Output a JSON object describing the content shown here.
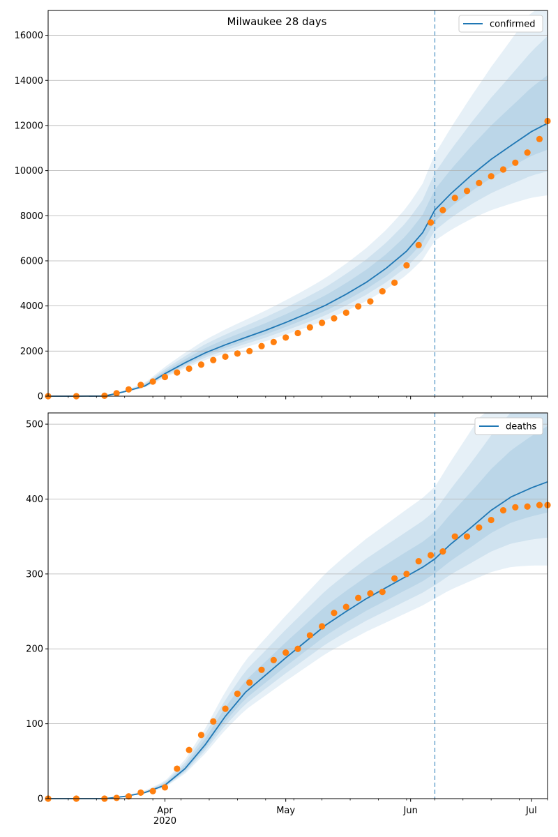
{
  "chart_data": [
    {
      "type": "line",
      "title": "Milwaukee 28 days",
      "xlabel": "",
      "ylabel": "",
      "xlim": [
        "2020-03-03",
        "2020-07-05"
      ],
      "ylim": [
        0,
        17100
      ],
      "yticks": [
        0,
        2000,
        4000,
        6000,
        8000,
        10000,
        12000,
        14000,
        16000
      ],
      "grid": "horizontal",
      "legend_position": "top-right",
      "forecast_start": "2020-06-07",
      "series": [
        {
          "name": "confirmed",
          "kind": "model-mean-line",
          "color": "#1f77b4",
          "x": [
            "2020-03-03",
            "2020-03-10",
            "2020-03-17",
            "2020-03-22",
            "2020-03-27",
            "2020-04-01",
            "2020-04-06",
            "2020-04-11",
            "2020-04-16",
            "2020-04-21",
            "2020-04-26",
            "2020-05-01",
            "2020-05-06",
            "2020-05-11",
            "2020-05-16",
            "2020-05-21",
            "2020-05-26",
            "2020-05-31",
            "2020-06-04",
            "2020-06-07",
            "2020-06-11",
            "2020-06-16",
            "2020-06-21",
            "2020-06-26",
            "2020-07-01",
            "2020-07-05"
          ],
          "y": [
            0,
            0,
            5,
            200,
            450,
            1000,
            1480,
            1920,
            2280,
            2600,
            2920,
            3270,
            3640,
            4040,
            4520,
            5050,
            5680,
            6430,
            7250,
            8250,
            8980,
            9780,
            10500,
            11120,
            11730,
            12100
          ]
        },
        {
          "name": "observed confirmed",
          "kind": "observed-points",
          "color": "#ff7f0e",
          "x": [
            "2020-03-03",
            "2020-03-10",
            "2020-03-17",
            "2020-03-20",
            "2020-03-23",
            "2020-03-26",
            "2020-03-29",
            "2020-04-01",
            "2020-04-04",
            "2020-04-07",
            "2020-04-10",
            "2020-04-13",
            "2020-04-16",
            "2020-04-19",
            "2020-04-22",
            "2020-04-25",
            "2020-04-28",
            "2020-05-01",
            "2020-05-04",
            "2020-05-07",
            "2020-05-10",
            "2020-05-13",
            "2020-05-16",
            "2020-05-19",
            "2020-05-22",
            "2020-05-25",
            "2020-05-28",
            "2020-05-31",
            "2020-06-03",
            "2020-06-06",
            "2020-06-09",
            "2020-06-12",
            "2020-06-15",
            "2020-06-18",
            "2020-06-21",
            "2020-06-24",
            "2020-06-27",
            "2020-06-30",
            "2020-07-03",
            "2020-07-05"
          ],
          "y": [
            0,
            0,
            20,
            130,
            300,
            500,
            650,
            850,
            1050,
            1220,
            1400,
            1600,
            1750,
            1890,
            2000,
            2220,
            2400,
            2600,
            2800,
            3050,
            3250,
            3450,
            3700,
            3980,
            4200,
            4650,
            5030,
            5800,
            6700,
            7700,
            8250,
            8790,
            9100,
            9450,
            9750,
            10050,
            10350,
            10800,
            11400,
            12200
          ]
        }
      ]
    },
    {
      "type": "line",
      "title": "",
      "xlabel": "",
      "ylabel": "",
      "xlim": [
        "2020-03-03",
        "2020-07-05"
      ],
      "ylim": [
        0,
        515
      ],
      "yticks": [
        0,
        100,
        200,
        300,
        400,
        500
      ],
      "xticks": [
        "2020-04-01",
        "2020-05-01",
        "2020-06-01",
        "2020-07-01"
      ],
      "xtick_labels": [
        "Apr\n2020",
        "May",
        "Jun",
        "Jul"
      ],
      "grid": "horizontal",
      "legend_position": "top-right",
      "forecast_start": "2020-06-07",
      "series": [
        {
          "name": "deaths",
          "kind": "model-mean-line",
          "color": "#1f77b4",
          "x": [
            "2020-03-03",
            "2020-03-10",
            "2020-03-17",
            "2020-03-22",
            "2020-03-27",
            "2020-04-01",
            "2020-04-06",
            "2020-04-11",
            "2020-04-16",
            "2020-04-21",
            "2020-04-26",
            "2020-05-01",
            "2020-05-06",
            "2020-05-11",
            "2020-05-16",
            "2020-05-21",
            "2020-05-26",
            "2020-05-31",
            "2020-06-04",
            "2020-06-07",
            "2020-06-11",
            "2020-06-16",
            "2020-06-21",
            "2020-06-26",
            "2020-07-01",
            "2020-07-05"
          ],
          "y": [
            0,
            0,
            0,
            3,
            8,
            18,
            40,
            72,
            110,
            142,
            165,
            188,
            210,
            232,
            250,
            267,
            282,
            297,
            309,
            320,
            340,
            362,
            385,
            403,
            415,
            423
          ]
        },
        {
          "name": "observed deaths",
          "kind": "observed-points",
          "color": "#ff7f0e",
          "x": [
            "2020-03-03",
            "2020-03-10",
            "2020-03-17",
            "2020-03-20",
            "2020-03-23",
            "2020-03-26",
            "2020-03-29",
            "2020-04-01",
            "2020-04-04",
            "2020-04-07",
            "2020-04-10",
            "2020-04-13",
            "2020-04-16",
            "2020-04-19",
            "2020-04-22",
            "2020-04-25",
            "2020-04-28",
            "2020-05-01",
            "2020-05-04",
            "2020-05-07",
            "2020-05-10",
            "2020-05-13",
            "2020-05-16",
            "2020-05-19",
            "2020-05-22",
            "2020-05-25",
            "2020-05-28",
            "2020-05-31",
            "2020-06-03",
            "2020-06-06",
            "2020-06-09",
            "2020-06-12",
            "2020-06-15",
            "2020-06-18",
            "2020-06-21",
            "2020-06-24",
            "2020-06-27",
            "2020-06-30",
            "2020-07-03",
            "2020-07-05"
          ],
          "y": [
            0,
            0,
            0,
            1,
            3,
            8,
            10,
            15,
            40,
            65,
            85,
            103,
            120,
            140,
            155,
            172,
            185,
            195,
            200,
            218,
            230,
            248,
            256,
            268,
            274,
            276,
            294,
            300,
            317,
            325,
            330,
            350,
            350,
            362,
            372,
            385,
            389,
            390,
            392,
            392
          ]
        }
      ]
    }
  ]
}
